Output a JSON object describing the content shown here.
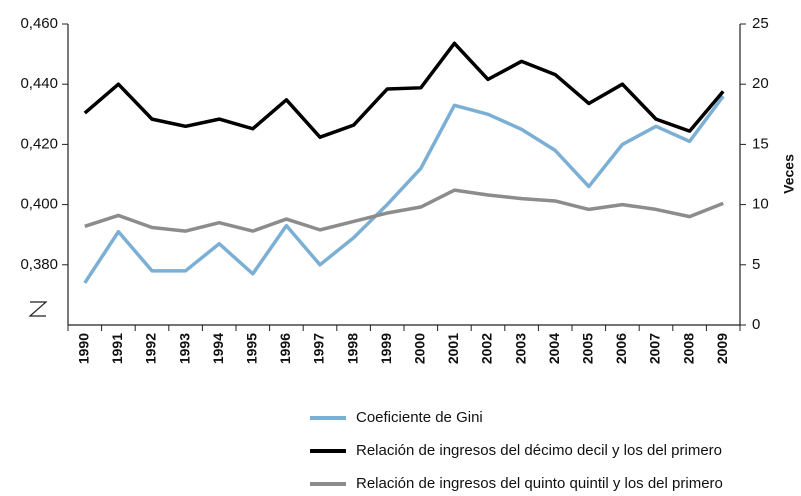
{
  "chart_data": {
    "type": "line",
    "categories": [
      "1990",
      "1991",
      "1992",
      "1993",
      "1994",
      "1995",
      "1996",
      "1997",
      "1998",
      "1999",
      "2000",
      "2001",
      "2002",
      "2003",
      "2004",
      "2005",
      "2006",
      "2007",
      "2008",
      "2009"
    ],
    "ylim": [
      0.36,
      0.46
    ],
    "yticks": [
      {
        "value": 0.38,
        "label": "0,380"
      },
      {
        "value": 0.4,
        "label": "0,400"
      },
      {
        "value": 0.42,
        "label": "0,420"
      },
      {
        "value": 0.44,
        "label": "0,440"
      },
      {
        "value": 0.46,
        "label": "0,460"
      }
    ],
    "y2lim": [
      0,
      25
    ],
    "y2ticks": [
      0,
      5,
      10,
      15,
      20,
      25
    ],
    "y2label": "Veces",
    "legend": "bottom",
    "series": [
      {
        "name": "Coeficiente de Gini",
        "color": "#7bafd4",
        "values": [
          0.374,
          0.391,
          0.378,
          0.378,
          0.387,
          0.377,
          0.393,
          0.38,
          0.389,
          0.4,
          0.412,
          0.433,
          0.43,
          0.425,
          0.418,
          0.406,
          0.42,
          0.426,
          0.421,
          0.436
        ]
      },
      {
        "name": "Relación de ingresos del décimo decil y los del primero",
        "color": "#000000",
        "axis": "y2",
        "values": [
          17.6,
          20.0,
          17.1,
          16.5,
          17.1,
          16.3,
          18.7,
          15.6,
          16.6,
          19.6,
          19.7,
          23.4,
          20.4,
          21.9,
          20.8,
          18.4,
          20.0,
          17.1,
          16.1,
          19.4
        ]
      },
      {
        "name": "Relación de ingresos del quinto quintil y los del primero",
        "color": "#8c8c8c",
        "axis": "y2",
        "values": [
          8.2,
          9.1,
          8.1,
          7.8,
          8.5,
          7.8,
          8.8,
          7.9,
          8.6,
          9.3,
          9.8,
          11.2,
          10.8,
          10.5,
          10.3,
          9.6,
          10.0,
          9.6,
          9.0,
          10.1
        ]
      }
    ]
  }
}
